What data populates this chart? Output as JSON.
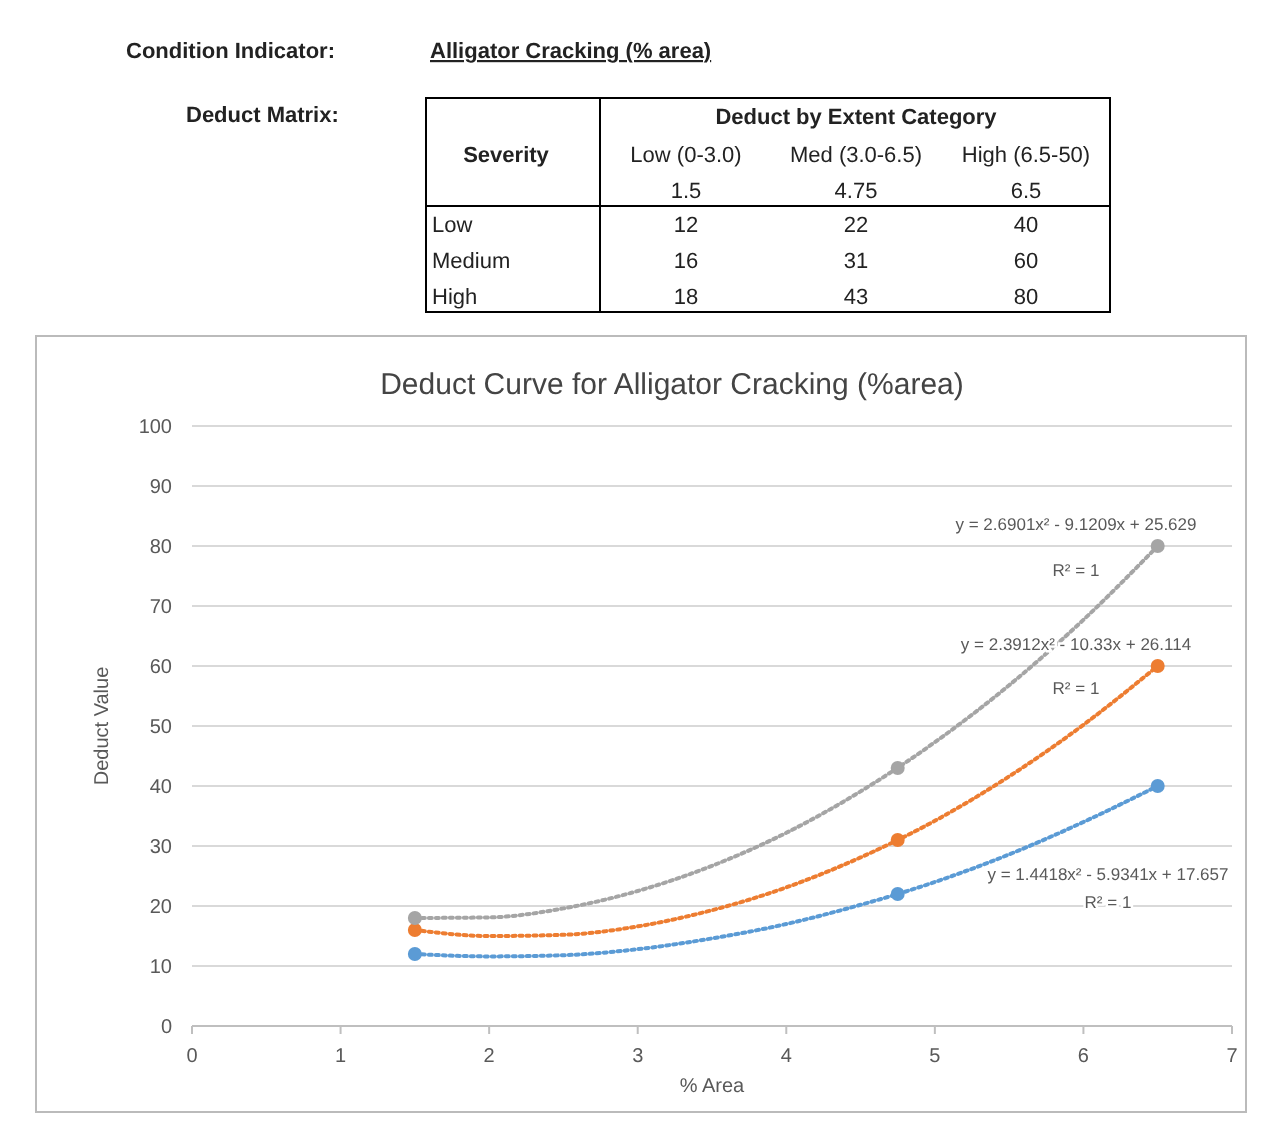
{
  "chart_data": [
    {
      "type": "other",
      "annotations": [
        "Condition Indicator:",
        "Alligator Cracking (% area)",
        "Deduct Matrix:",
        "Deduct by Extent Category",
        "Severity",
        "Low (0-3.0)",
        "Med (3.0-6.5)",
        "High (6.5-50)",
        "1.5",
        "4.75",
        "6.5",
        "Low",
        "12",
        "22",
        "40",
        "Medium",
        "16",
        "31",
        "60",
        "High",
        "18",
        "43",
        "80"
      ]
    },
    {
      "type": "scatter",
      "title": "Deduct Curve for Alligator Cracking (%area)",
      "xlabel": "% Area",
      "ylabel": "Deduct Value",
      "xlim": [
        0,
        7
      ],
      "xticks": [
        0,
        1,
        2,
        3,
        4,
        5,
        6,
        7
      ],
      "ylim": [
        0,
        100
      ],
      "yticks": [
        0,
        10,
        20,
        30,
        40,
        50,
        60,
        70,
        80,
        90,
        100
      ],
      "grid": "y",
      "series": [
        {
          "type": "line",
          "color": "#5b9bd5",
          "marker": "none",
          "line_style": "dotted",
          "x": [
            1.5,
            2,
            2.5,
            3,
            3.5,
            4,
            4.5,
            4.75,
            5,
            5.5,
            6,
            6.5
          ],
          "values": [
            12.0,
            11.6,
            11.8,
            12.8,
            14.6,
            17.0,
            20.2,
            22.0,
            24.0,
            28.6,
            34.0,
            40.0
          ]
        },
        {
          "type": "line",
          "color": "#ed7d31",
          "marker": "none",
          "line_style": "dotted",
          "x": [
            1.5,
            2,
            2.5,
            3,
            3.5,
            4,
            4.5,
            5,
            5.5,
            6,
            6.5
          ],
          "values": [
            16.0,
            15.0,
            15.2,
            16.6,
            19.3,
            23.1,
            28.1,
            34.2,
            41.6,
            50.2,
            60.0
          ]
        },
        {
          "type": "line",
          "color": "#a5a5a5",
          "marker": "none",
          "line_style": "dotted",
          "x": [
            1.5,
            2,
            2.5,
            3,
            3.5,
            4,
            4.5,
            5,
            5.5,
            6,
            6.5
          ],
          "values": [
            18.0,
            18.1,
            19.6,
            22.5,
            26.7,
            32.2,
            39.1,
            47.3,
            56.8,
            67.7,
            80.0
          ]
        },
        {
          "type": "scatter",
          "color": "#5b9bd5",
          "marker": "circle",
          "x": [
            1.5,
            4.75,
            6.5
          ],
          "values": [
            12,
            22,
            40
          ]
        },
        {
          "type": "scatter",
          "color": "#ed7d31",
          "marker": "circle",
          "x": [
            1.5,
            4.75,
            6.5
          ],
          "values": [
            16,
            31,
            60
          ]
        },
        {
          "type": "scatter",
          "color": "#a5a5a5",
          "marker": "circle",
          "x": [
            1.5,
            4.75,
            6.5
          ],
          "values": [
            18,
            43,
            80
          ]
        }
      ],
      "annotations": [
        "y = 2.6901x² - 9.1209x + 25.629",
        "R² = 1",
        "y = 2.3912x² - 10.33x + 26.114",
        "R² = 1",
        "y = 1.4418x² - 5.9341x + 17.657",
        "R² = 1"
      ]
    }
  ]
}
